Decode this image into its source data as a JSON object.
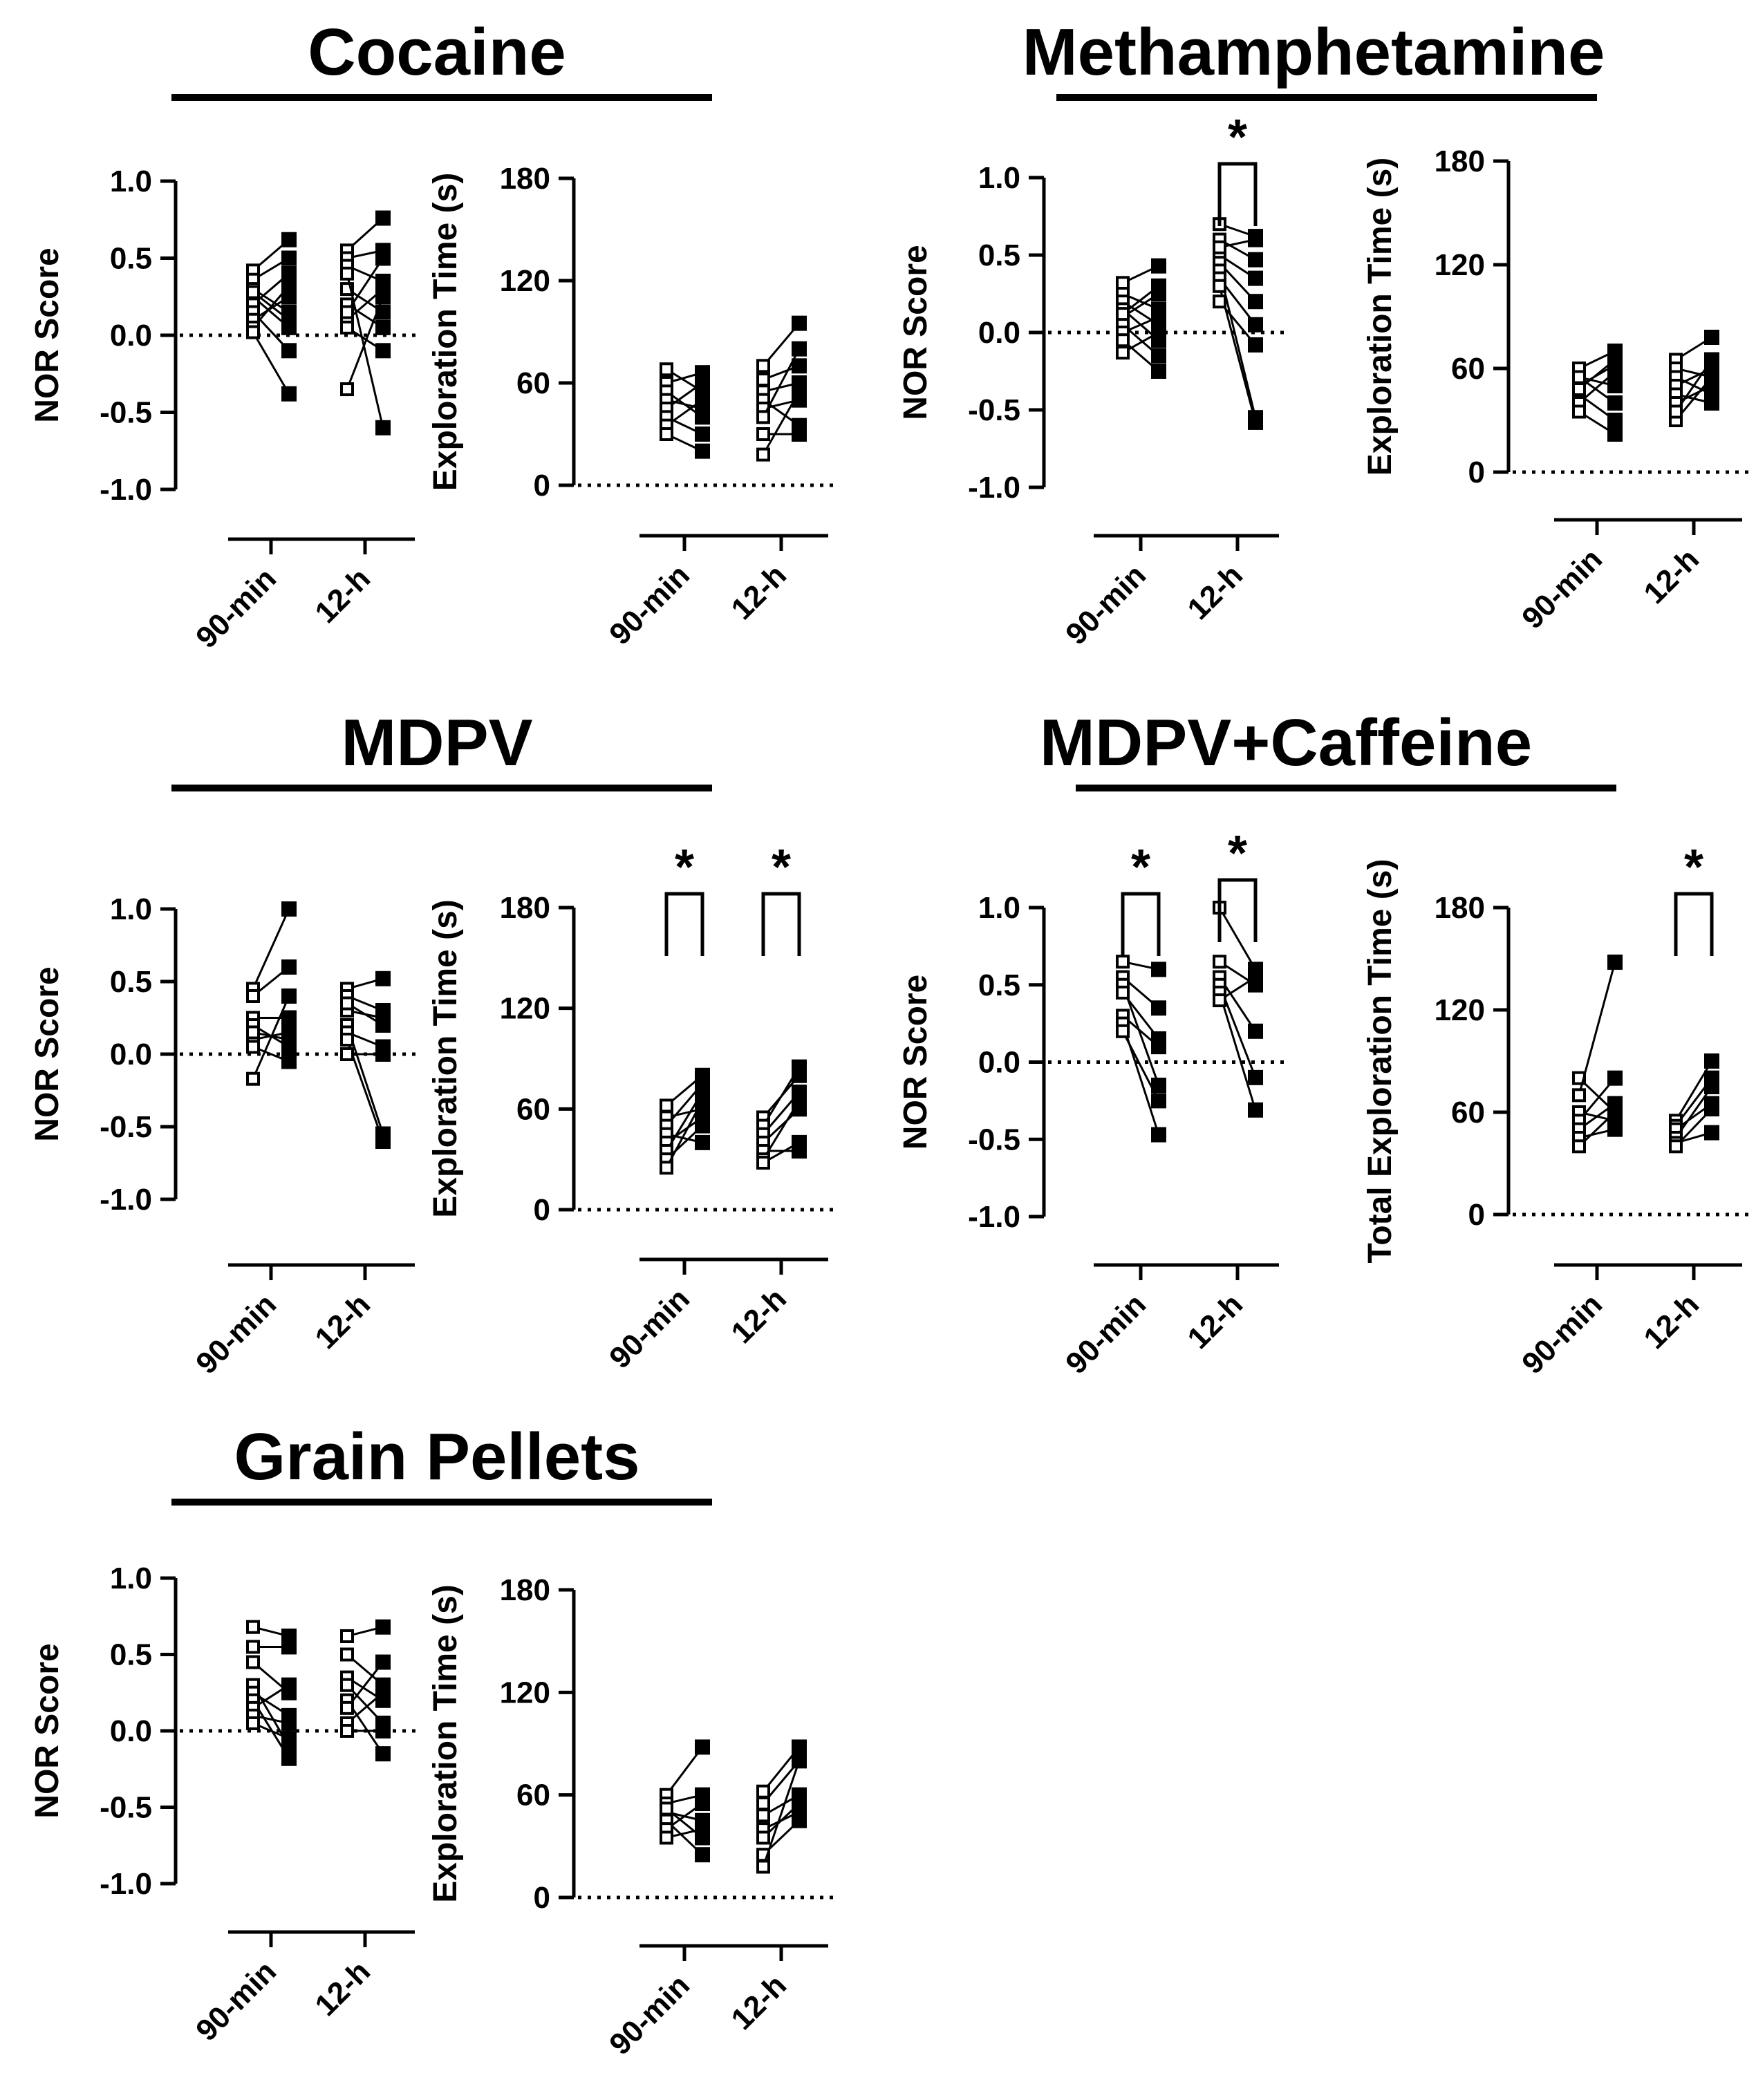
{
  "figure": {
    "background": "#ffffff",
    "ink": "#000000"
  },
  "groups": [
    {
      "title": "Cocaine"
    },
    {
      "title": "Methamphetamine"
    },
    {
      "title": "MDPV"
    },
    {
      "title": "MDPV+Caffeine"
    },
    {
      "title": "Grain Pellets"
    }
  ],
  "chart_data": [
    {
      "group": "Cocaine",
      "type": "scatter",
      "ylabel": "NOR Score",
      "ylim": [
        -1.0,
        1.0
      ],
      "yticks": [
        1.0,
        0.5,
        0.0,
        -0.5,
        -1.0
      ],
      "ytick_labels": [
        "1.0",
        "0.5",
        "0.0",
        "-0.5",
        "-1.0"
      ],
      "categories": [
        "90-min",
        "12-h"
      ],
      "pairs": [
        [
          [
            0.42,
            0.62
          ],
          [
            0.36,
            0.5
          ],
          [
            0.3,
            0.15
          ],
          [
            0.25,
            0.05
          ],
          [
            0.2,
            0.4
          ],
          [
            0.15,
            -0.1
          ],
          [
            0.1,
            0.25
          ],
          [
            0.05,
            0.32
          ],
          [
            0.02,
            -0.38
          ],
          [
            0.28,
            0.1
          ]
        ],
        [
          [
            0.55,
            0.76
          ],
          [
            0.5,
            0.55
          ],
          [
            0.45,
            0.35
          ],
          [
            0.3,
            0.15
          ],
          [
            0.2,
            0.05
          ],
          [
            0.1,
            0.3
          ],
          [
            0.05,
            -0.1
          ],
          [
            -0.35,
            0.25
          ],
          [
            0.4,
            -0.6
          ],
          [
            0.15,
            0.5
          ]
        ]
      ],
      "reference_line": 0,
      "significance": []
    },
    {
      "group": "Cocaine",
      "type": "scatter",
      "ylabel": "Exploration Time (s)",
      "ylim": [
        0,
        180
      ],
      "yticks": [
        180,
        120,
        60,
        0
      ],
      "ytick_labels": [
        "180",
        "120",
        "60",
        "0"
      ],
      "categories": [
        "90-min",
        "12-h"
      ],
      "pairs": [
        [
          [
            68,
            55
          ],
          [
            60,
            66
          ],
          [
            55,
            40
          ],
          [
            50,
            45
          ],
          [
            45,
            60
          ],
          [
            40,
            30
          ],
          [
            35,
            50
          ],
          [
            30,
            20
          ]
        ],
        [
          [
            70,
            95
          ],
          [
            62,
            70
          ],
          [
            55,
            60
          ],
          [
            50,
            35
          ],
          [
            45,
            50
          ],
          [
            40,
            80
          ],
          [
            30,
            30
          ],
          [
            18,
            55
          ]
        ]
      ],
      "reference_line": 0,
      "significance": []
    },
    {
      "group": "Methamphetamine",
      "type": "scatter",
      "ylabel": "NOR Score",
      "ylim": [
        -1.0,
        1.0
      ],
      "yticks": [
        1.0,
        0.5,
        0.0,
        -0.5,
        -1.0
      ],
      "ytick_labels": [
        "1.0",
        "0.5",
        "0.0",
        "-0.5",
        "-1.0"
      ],
      "categories": [
        "90-min",
        "12-h"
      ],
      "pairs": [
        [
          [
            0.32,
            0.43
          ],
          [
            0.25,
            0.15
          ],
          [
            0.2,
            0.05
          ],
          [
            0.15,
            -0.05
          ],
          [
            0.1,
            0.25
          ],
          [
            0.05,
            -0.15
          ],
          [
            0.0,
            0.1
          ],
          [
            -0.05,
            -0.25
          ],
          [
            0.12,
            0.3
          ],
          [
            -0.13,
            0.0
          ]
        ],
        [
          [
            0.7,
            0.62
          ],
          [
            0.6,
            0.47
          ],
          [
            0.5,
            0.35
          ],
          [
            0.45,
            0.2
          ],
          [
            0.4,
            -0.55
          ],
          [
            0.35,
            0.05
          ],
          [
            0.3,
            -0.58
          ],
          [
            0.2,
            -0.08
          ],
          [
            0.55,
            0.6
          ]
        ]
      ],
      "reference_line": 0,
      "significance": [
        {
          "category": 1,
          "label": "*"
        }
      ]
    },
    {
      "group": "Methamphetamine",
      "type": "scatter",
      "ylabel": "Exploration Time (s)",
      "ylim": [
        0,
        180
      ],
      "yticks": [
        180,
        120,
        60,
        0
      ],
      "ytick_labels": [
        "180",
        "120",
        "60",
        "0"
      ],
      "categories": [
        "90-min",
        "12-h"
      ],
      "pairs": [
        [
          [
            60,
            70
          ],
          [
            55,
            50
          ],
          [
            50,
            62
          ],
          [
            45,
            30
          ],
          [
            40,
            58
          ],
          [
            35,
            22
          ],
          [
            55,
            40
          ],
          [
            48,
            65
          ]
        ],
        [
          [
            65,
            78
          ],
          [
            60,
            55
          ],
          [
            55,
            45
          ],
          [
            50,
            60
          ],
          [
            45,
            40
          ],
          [
            40,
            50
          ],
          [
            30,
            55
          ],
          [
            35,
            65
          ]
        ]
      ],
      "reference_line": 0,
      "significance": []
    },
    {
      "group": "MDPV",
      "type": "scatter",
      "ylabel": "NOR Score",
      "ylim": [
        -1.0,
        1.0
      ],
      "yticks": [
        1.0,
        0.5,
        0.0,
        -0.5,
        -1.0
      ],
      "ytick_labels": [
        "1.0",
        "0.5",
        "0.0",
        "-0.5",
        "-1.0"
      ],
      "categories": [
        "90-min",
        "12-h"
      ],
      "pairs": [
        [
          [
            0.45,
            1.0
          ],
          [
            0.4,
            0.6
          ],
          [
            0.25,
            0.25
          ],
          [
            0.2,
            0.05
          ],
          [
            0.1,
            0.15
          ],
          [
            0.05,
            -0.05
          ],
          [
            -0.17,
            0.4
          ],
          [
            0.15,
            0.1
          ]
        ],
        [
          [
            0.45,
            0.52
          ],
          [
            0.4,
            0.3
          ],
          [
            0.3,
            0.25
          ],
          [
            0.2,
            -0.55
          ],
          [
            0.15,
            0.05
          ],
          [
            0.1,
            -0.6
          ],
          [
            0.0,
            0.0
          ],
          [
            0.35,
            0.2
          ]
        ]
      ],
      "reference_line": 0,
      "significance": []
    },
    {
      "group": "MDPV",
      "type": "scatter",
      "ylabel": "Exploration Time (s)",
      "ylim": [
        0,
        180
      ],
      "yticks": [
        180,
        120,
        60,
        0
      ],
      "ytick_labels": [
        "180",
        "120",
        "60",
        "0"
      ],
      "categories": [
        "90-min",
        "12-h"
      ],
      "pairs": [
        [
          [
            62,
            80
          ],
          [
            55,
            60
          ],
          [
            50,
            75
          ],
          [
            45,
            40
          ],
          [
            40,
            55
          ],
          [
            35,
            70
          ],
          [
            30,
            50
          ],
          [
            25,
            65
          ]
        ],
        [
          [
            55,
            80
          ],
          [
            50,
            85
          ],
          [
            45,
            70
          ],
          [
            40,
            60
          ],
          [
            35,
            35
          ],
          [
            30,
            65
          ],
          [
            28,
            40
          ]
        ]
      ],
      "reference_line": 0,
      "significance": [
        {
          "category": 0,
          "label": "*"
        },
        {
          "category": 1,
          "label": "*"
        }
      ]
    },
    {
      "group": "MDPV+Caffeine",
      "type": "scatter",
      "ylabel": "NOR Score",
      "ylim": [
        -1.0,
        1.0
      ],
      "yticks": [
        1.0,
        0.5,
        0.0,
        -0.5,
        -1.0
      ],
      "ytick_labels": [
        "1.0",
        "0.5",
        "0.0",
        "-0.5",
        "-1.0"
      ],
      "categories": [
        "90-min",
        "12-h"
      ],
      "pairs": [
        [
          [
            0.65,
            0.6
          ],
          [
            0.55,
            0.35
          ],
          [
            0.5,
            -0.15
          ],
          [
            0.45,
            0.15
          ],
          [
            0.3,
            0.1
          ],
          [
            0.25,
            -0.47
          ],
          [
            0.2,
            -0.25
          ]
        ],
        [
          [
            1.0,
            0.6
          ],
          [
            0.65,
            0.5
          ],
          [
            0.55,
            0.2
          ],
          [
            0.5,
            -0.1
          ],
          [
            0.45,
            -0.31
          ],
          [
            0.4,
            0.55
          ]
        ]
      ],
      "reference_line": 0,
      "significance": [
        {
          "category": 0,
          "label": "*"
        },
        {
          "category": 1,
          "label": "*"
        }
      ]
    },
    {
      "group": "MDPV+Caffeine",
      "type": "scatter",
      "ylabel": "Total Exploration Time (s)",
      "ylim": [
        0,
        180
      ],
      "yticks": [
        180,
        120,
        60,
        0
      ],
      "ytick_labels": [
        "180",
        "120",
        "60",
        "0"
      ],
      "categories": [
        "90-min",
        "12-h"
      ],
      "pairs": [
        [
          [
            80,
            60
          ],
          [
            70,
            148
          ],
          [
            60,
            55
          ],
          [
            55,
            80
          ],
          [
            50,
            65
          ],
          [
            45,
            50
          ],
          [
            40,
            60
          ]
        ],
        [
          [
            55,
            90
          ],
          [
            52,
            80
          ],
          [
            50,
            65
          ],
          [
            45,
            75
          ],
          [
            42,
            48
          ],
          [
            40,
            62
          ]
        ]
      ],
      "reference_line": 0,
      "significance": [
        {
          "category": 1,
          "label": "*"
        }
      ]
    },
    {
      "group": "Grain Pellets",
      "type": "scatter",
      "ylabel": "NOR Score",
      "ylim": [
        -1.0,
        1.0
      ],
      "yticks": [
        1.0,
        0.5,
        0.0,
        -0.5,
        -1.0
      ],
      "ytick_labels": [
        "1.0",
        "0.5",
        "0.0",
        "-0.5",
        "-1.0"
      ],
      "categories": [
        "90-min",
        "12-h"
      ],
      "pairs": [
        [
          [
            0.68,
            0.62
          ],
          [
            0.55,
            0.55
          ],
          [
            0.45,
            0.25
          ],
          [
            0.3,
            -0.1
          ],
          [
            0.25,
            0.1
          ],
          [
            0.2,
            -0.18
          ],
          [
            0.15,
            0.3
          ],
          [
            0.1,
            0.05
          ],
          [
            0.05,
            -0.05
          ]
        ],
        [
          [
            0.62,
            0.68
          ],
          [
            0.5,
            0.3
          ],
          [
            0.35,
            0.2
          ],
          [
            0.3,
            0.05
          ],
          [
            0.2,
            -0.15
          ],
          [
            0.15,
            0.45
          ],
          [
            0.05,
            0.25
          ],
          [
            0.0,
            0.0
          ]
        ]
      ],
      "reference_line": 0,
      "significance": []
    },
    {
      "group": "Grain Pellets",
      "type": "scatter",
      "ylabel": "Exploration Time (s)",
      "ylim": [
        0,
        180
      ],
      "yticks": [
        180,
        120,
        60,
        0
      ],
      "ytick_labels": [
        "180",
        "120",
        "60",
        "0"
      ],
      "categories": [
        "90-min",
        "12-h"
      ],
      "pairs": [
        [
          [
            60,
            88
          ],
          [
            55,
            60
          ],
          [
            50,
            45
          ],
          [
            45,
            25
          ],
          [
            40,
            55
          ],
          [
            35,
            40
          ],
          [
            52,
            35
          ]
        ],
        [
          [
            62,
            88
          ],
          [
            55,
            80
          ],
          [
            48,
            60
          ],
          [
            40,
            50
          ],
          [
            35,
            55
          ],
          [
            25,
            45
          ],
          [
            18,
            80
          ]
        ]
      ],
      "reference_line": 0,
      "significance": []
    }
  ]
}
